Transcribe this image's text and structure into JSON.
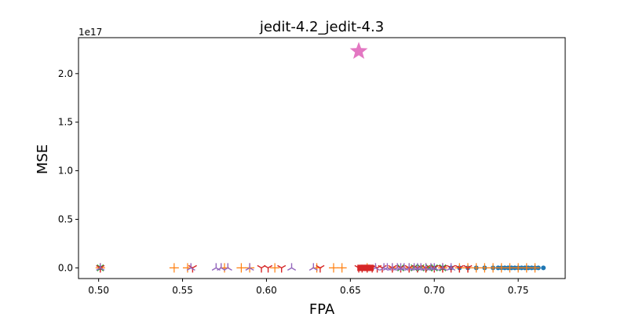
{
  "chart_data": {
    "type": "scatter",
    "title": "jedit-4.2_jedit-4.3",
    "xlabel": "FPA",
    "ylabel": "MSE",
    "offset_text": "1e17",
    "xlim": [
      0.488,
      0.778
    ],
    "ylim": [
      -0.11,
      2.37
    ],
    "y_scale_exponent": 17,
    "grid": false,
    "legend": "none",
    "x_ticks": [
      0.5,
      0.55,
      0.6,
      0.65,
      0.7,
      0.75
    ],
    "x_tick_labels": [
      "0.50",
      "0.55",
      "0.60",
      "0.65",
      "0.70",
      "0.75"
    ],
    "y_ticks": [
      0.0,
      0.5,
      1.0,
      1.5,
      2.0
    ],
    "y_tick_labels": [
      "0.0",
      "0.5",
      "1.0",
      "1.5",
      "2.0"
    ],
    "series": [
      {
        "marker": "circle",
        "color": "#1f77b4",
        "x": [
          0.501,
          0.7,
          0.705,
          0.71,
          0.715,
          0.72,
          0.725,
          0.73,
          0.735,
          0.738,
          0.74,
          0.742,
          0.744,
          0.746,
          0.748,
          0.75,
          0.752,
          0.754,
          0.756,
          0.758,
          0.76,
          0.762,
          0.765
        ],
        "y": [
          0,
          0,
          0,
          0,
          0,
          0,
          0,
          0,
          0,
          0,
          0,
          0,
          0,
          0,
          0,
          0,
          0,
          0,
          0,
          0,
          0,
          0,
          0
        ]
      },
      {
        "marker": "plus",
        "color": "#ff7f0e",
        "x": [
          0.501,
          0.545,
          0.553,
          0.575,
          0.585,
          0.59,
          0.605,
          0.63,
          0.64,
          0.645,
          0.66,
          0.675,
          0.685,
          0.695,
          0.705,
          0.715,
          0.72,
          0.725,
          0.73,
          0.735,
          0.74,
          0.745,
          0.75,
          0.755,
          0.76
        ],
        "y": [
          0,
          0,
          0,
          0,
          0,
          0,
          0,
          0,
          0,
          0,
          0,
          0,
          0,
          0,
          0,
          0,
          0,
          0,
          0,
          0,
          0,
          0,
          0,
          0,
          0
        ]
      },
      {
        "marker": "x",
        "color": "#2ca02c",
        "x": [
          0.501,
          0.68,
          0.688,
          0.692,
          0.697,
          0.7,
          0.705
        ],
        "y": [
          0,
          0,
          0,
          0,
          0,
          0,
          0
        ]
      },
      {
        "marker": "tri_down",
        "color": "#d62728",
        "x": [
          0.501,
          0.556,
          0.597,
          0.601,
          0.609,
          0.632,
          0.655,
          0.657,
          0.66,
          0.663,
          0.666,
          0.669,
          0.675,
          0.68,
          0.685,
          0.69,
          0.695,
          0.7,
          0.705,
          0.71,
          0.715,
          0.72
        ],
        "y": [
          0,
          0,
          0,
          0,
          0,
          0,
          0,
          0,
          0,
          0,
          0,
          0,
          0,
          0,
          0,
          0,
          0,
          0,
          0,
          0,
          0,
          0
        ]
      },
      {
        "marker": "tri_up",
        "color": "#9467bd",
        "x": [
          0.501,
          0.555,
          0.57,
          0.573,
          0.577,
          0.59,
          0.615,
          0.628,
          0.665,
          0.67,
          0.672,
          0.675,
          0.678,
          0.68,
          0.682,
          0.685,
          0.688,
          0.69,
          0.692,
          0.695,
          0.698,
          0.7,
          0.705,
          0.71
        ],
        "y": [
          0,
          0,
          0,
          0,
          0,
          0,
          0,
          0,
          0,
          0,
          0,
          0,
          0,
          0,
          0,
          0,
          0,
          0,
          0,
          0,
          0,
          0,
          0,
          0
        ]
      },
      {
        "marker": "square",
        "color": "#d62728",
        "x": [
          0.656,
          0.658,
          0.66,
          0.662
        ],
        "y": [
          0,
          0,
          0,
          0
        ]
      },
      {
        "marker": "star",
        "color": "#e377c2",
        "x": [
          0.655
        ],
        "y": [
          2.23
        ]
      }
    ]
  }
}
